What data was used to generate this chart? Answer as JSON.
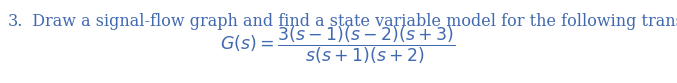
{
  "text_color": "#4169B0",
  "background_color": "#ffffff",
  "number_text": "3.",
  "intro_text": "  Draw a signal-flow graph and find a state variable model for the following transfer function:",
  "equation": "$G(s) = \\dfrac{3(s-1)(s-2)(s+3)}{s(s+1)(s+2)}$",
  "font_size_intro": 11.5,
  "font_size_eq": 12.5
}
